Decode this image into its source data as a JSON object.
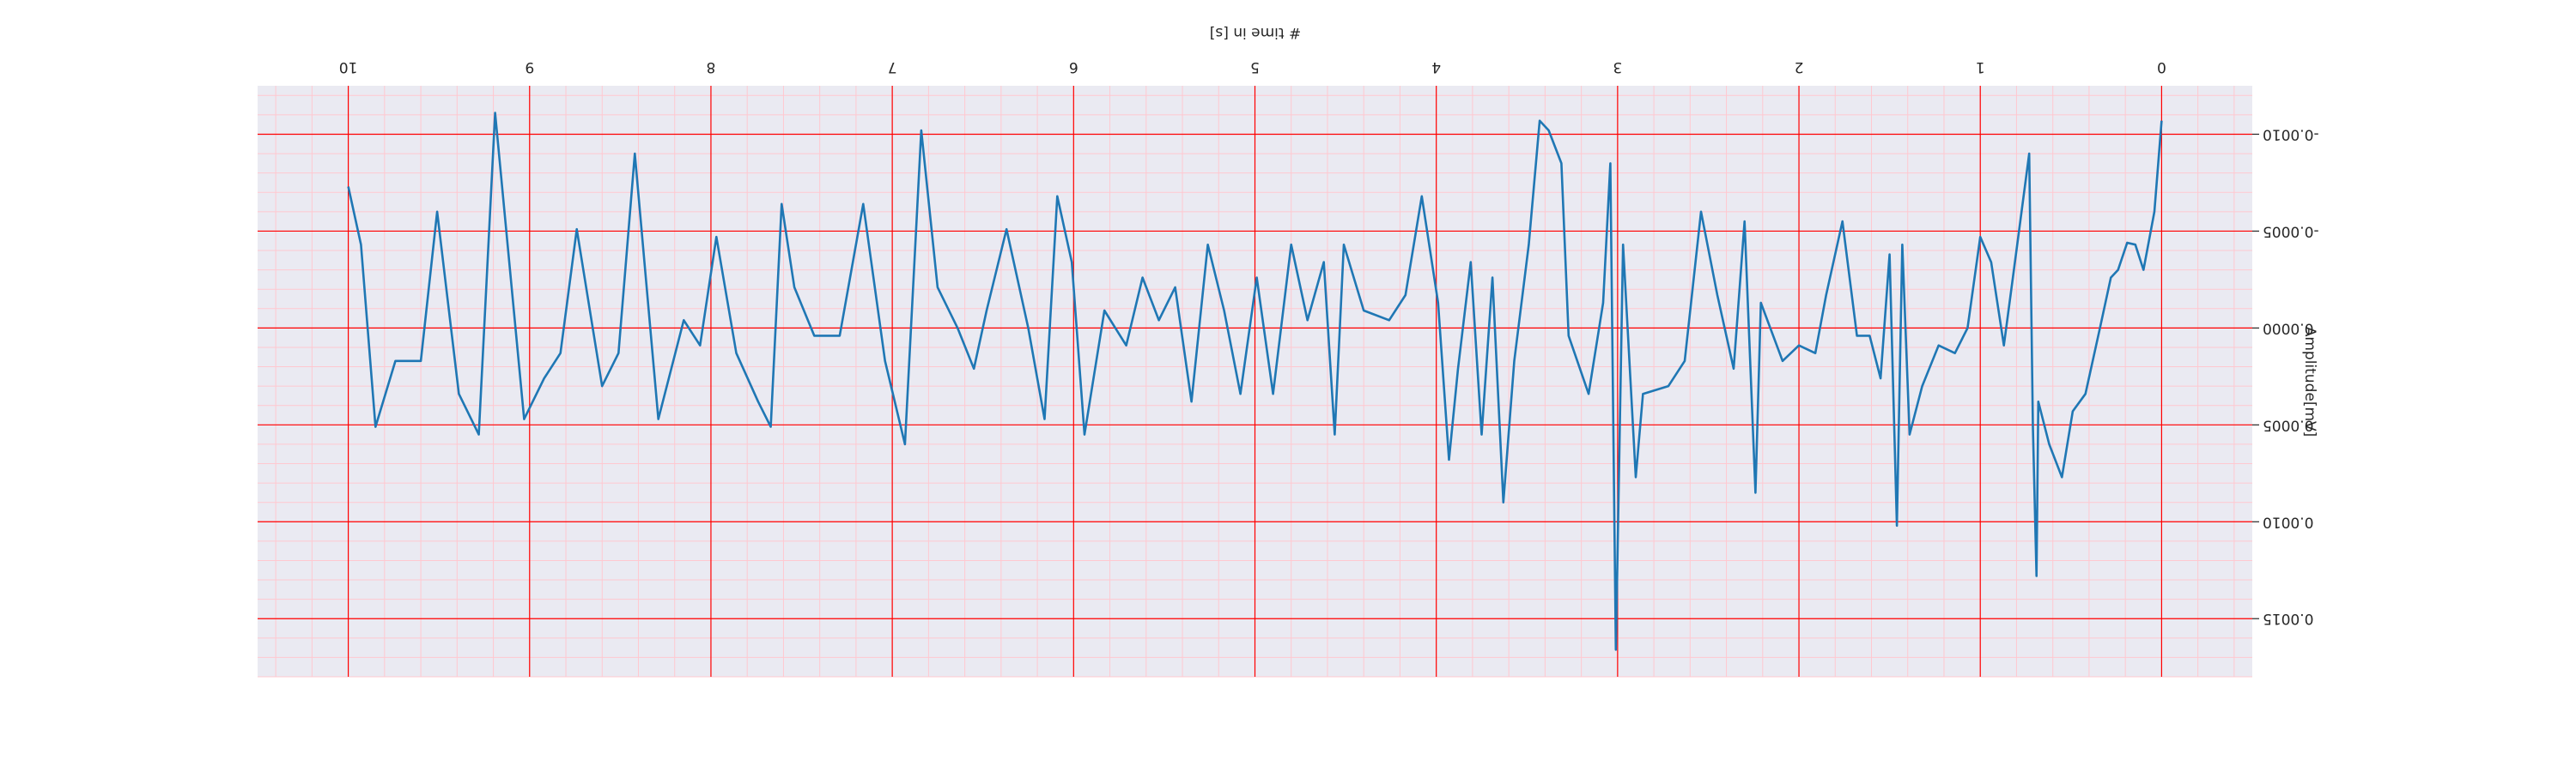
{
  "chart_data": {
    "type": "line",
    "xlabel": "# time in [s]",
    "ylabel": "Amplitude[mV]",
    "x": [
      0,
      0.04,
      0.1,
      0.145,
      0.19,
      0.24,
      0.28,
      0.34,
      0.42,
      0.49,
      0.55,
      0.62,
      0.68,
      0.69,
      0.71,
      0.73,
      0.82,
      0.87,
      0.94,
      1.0,
      1.07,
      1.14,
      1.23,
      1.32,
      1.39,
      1.43,
      1.46,
      1.5,
      1.55,
      1.61,
      1.68,
      1.76,
      1.85,
      1.91,
      2.0,
      2.09,
      2.21,
      2.24,
      2.3,
      2.36,
      2.45,
      2.54,
      2.63,
      2.72,
      2.86,
      2.9,
      2.97,
      3.01,
      3.04,
      3.08,
      3.16,
      3.27,
      3.31,
      3.38,
      3.43,
      3.49,
      3.57,
      3.63,
      3.69,
      3.75,
      3.81,
      3.88,
      3.93,
      3.99,
      4.08,
      4.17,
      4.26,
      4.4,
      4.51,
      4.56,
      4.62,
      4.71,
      4.8,
      4.9,
      4.99,
      5.08,
      5.17,
      5.26,
      5.35,
      5.44,
      5.53,
      5.62,
      5.71,
      5.83,
      5.94,
      6.01,
      6.09,
      6.16,
      6.25,
      6.37,
      6.48,
      6.55,
      6.64,
      6.75,
      6.84,
      6.93,
      7.04,
      7.16,
      7.29,
      7.43,
      7.54,
      7.61,
      7.67,
      7.74,
      7.86,
      7.97,
      8.06,
      8.15,
      8.29,
      8.42,
      8.51,
      8.6,
      8.74,
      8.83,
      8.92,
      9.03,
      9.19,
      9.28,
      9.39,
      9.51,
      9.6,
      9.74,
      9.85,
      9.93,
      10.0
    ],
    "series": [
      {
        "color": "#1f77b4",
        "values": [
          -0.00107,
          -0.0006,
          -0.0003,
          -0.00043,
          -0.00044,
          -0.0003,
          -0.00026,
          0,
          0.00034,
          0.00043,
          0.00077,
          0.0006,
          0.00038,
          0.00128,
          0.00051,
          -0.0009,
          -0.00026,
          9e-05,
          -0.00034,
          -0.00047,
          0,
          0.00013,
          9e-05,
          0.0003,
          0.00055,
          -0.00043,
          0.00102,
          -0.00038,
          0.00026,
          4e-05,
          4e-05,
          -0.00055,
          -0.00017,
          0.00013,
          9e-05,
          0.00017,
          -0.00013,
          0.00085,
          -0.00055,
          0.00021,
          -0.00017,
          -0.0006,
          0.00017,
          0.0003,
          0.00034,
          0.00077,
          -0.00043,
          0.00166,
          -0.00085,
          -0.00013,
          0.00034,
          4e-05,
          -0.00085,
          -0.00102,
          -0.00107,
          -0.00043,
          0.00017,
          0.0009,
          -0.00026,
          0.00055,
          -0.00034,
          0.00021,
          0.00068,
          -0.00013,
          -0.00068,
          -0.00017,
          -4e-05,
          -9e-05,
          -0.00043,
          0.00055,
          -0.00034,
          -4e-05,
          -0.00043,
          0.00034,
          -0.00026,
          0.00034,
          -9e-05,
          -0.00043,
          0.00038,
          -0.00021,
          -4e-05,
          -0.00026,
          9e-05,
          -9e-05,
          0.00055,
          -0.00034,
          -0.00068,
          0.00047,
          0,
          -0.00051,
          -9e-05,
          0.00021,
          0,
          -0.00021,
          -0.00102,
          0.0006,
          0.00017,
          -0.00064,
          4e-05,
          4e-05,
          -0.00021,
          -0.00064,
          0.00051,
          0.00038,
          0.00013,
          -0.00047,
          9e-05,
          -4e-05,
          0.00047,
          -0.0009,
          0.00013,
          0.0003,
          -0.00051,
          0.00013,
          0.00026,
          0.00047,
          -0.00111,
          0.00055,
          0.00034,
          -0.0006,
          0.00017,
          0.00017,
          0.00051,
          -0.00043,
          -0.00073
        ]
      }
    ],
    "xlim": [
      -0.5,
      10.5
    ],
    "ylim": [
      -0.00125,
      0.0018
    ],
    "xticks": [
      0,
      1,
      2,
      3,
      4,
      5,
      6,
      7,
      8,
      9,
      10
    ],
    "yticks": [
      {
        "value": -0.001,
        "label": "-0.0010"
      },
      {
        "value": -0.0005,
        "label": "-0.0005"
      },
      {
        "value": 0,
        "label": "0.0000"
      },
      {
        "value": 0.0005,
        "label": "0.0005"
      },
      {
        "value": 0.001,
        "label": "0.0010"
      },
      {
        "value": 0.0015,
        "label": "0.0015"
      }
    ],
    "grid": true,
    "grid_color": "#ff0000",
    "minor_grid": true,
    "minor_grid_color": "#ffc8d0",
    "background": "#eaeaf2",
    "rotation": 180
  }
}
